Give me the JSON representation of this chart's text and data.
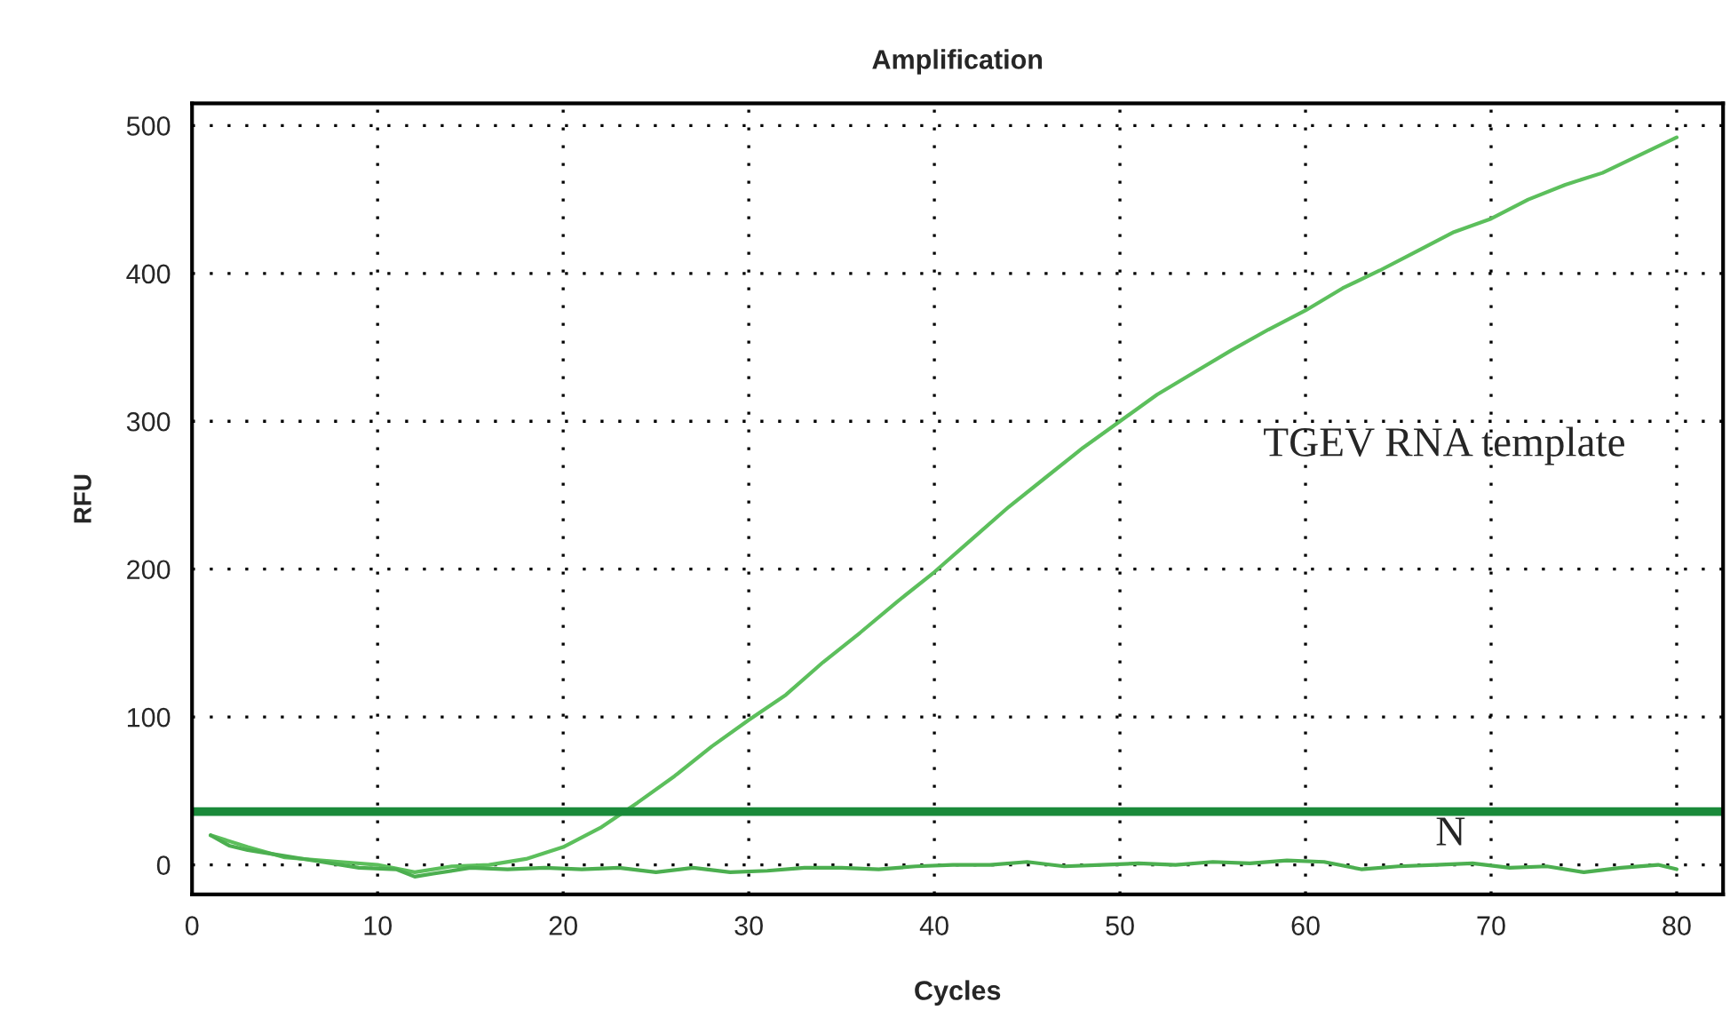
{
  "chart_data": {
    "type": "line",
    "title": "Amplification",
    "xlabel": "Cycles",
    "ylabel": "RFU",
    "xlim": [
      0,
      82.5
    ],
    "xticks": [
      0,
      10,
      20,
      30,
      40,
      50,
      60,
      70,
      80
    ],
    "ylim": [
      -20,
      515
    ],
    "yticks": [
      0,
      100,
      200,
      300,
      400,
      500
    ],
    "grid": true,
    "line_style": "solid",
    "marker": "none",
    "series": [
      {
        "color": "#5cbf5c",
        "x": [
          1,
          3,
          5,
          8,
          10,
          12,
          14,
          16,
          18,
          20,
          22,
          24,
          26,
          28,
          30,
          32,
          34,
          36,
          38,
          40,
          42,
          44,
          46,
          48,
          50,
          52,
          54,
          56,
          58,
          60,
          62,
          64,
          66,
          68,
          70,
          72,
          74,
          76,
          78,
          80
        ],
        "values": [
          20,
          12,
          5,
          2,
          0,
          -5,
          -1,
          0,
          4,
          12,
          25,
          42,
          60,
          80,
          98,
          115,
          137,
          157,
          178,
          198,
          220,
          242,
          262,
          282,
          300,
          318,
          333,
          348,
          362,
          375,
          390,
          402,
          415,
          428,
          437,
          450,
          460,
          468,
          480,
          492
        ]
      },
      {
        "color": "#4caf50",
        "x": [
          1,
          2,
          3,
          5,
          7,
          9,
          11,
          12,
          13,
          15,
          17,
          19,
          21,
          23,
          25,
          27,
          29,
          31,
          33,
          35,
          37,
          39,
          41,
          43,
          45,
          47,
          49,
          51,
          53,
          55,
          57,
          59,
          61,
          63,
          65,
          67,
          69,
          71,
          73,
          75,
          77,
          79,
          80
        ],
        "values": [
          20,
          13,
          10,
          6,
          2,
          -2,
          -3,
          -8,
          -6,
          -2,
          -3,
          -2,
          -3,
          -2,
          -5,
          -2,
          -5,
          -4,
          -2,
          -2,
          -3,
          -1,
          0,
          0,
          2,
          -1,
          0,
          1,
          0,
          2,
          1,
          3,
          2,
          -3,
          -1,
          0,
          1,
          -2,
          -1,
          -5,
          -2,
          0,
          -3
        ]
      }
    ],
    "ref_lines": [
      {
        "axis": "y",
        "value": 36,
        "color": "#1a8a3a"
      }
    ],
    "annotations": [
      "TGEV RNA template",
      "N"
    ]
  }
}
